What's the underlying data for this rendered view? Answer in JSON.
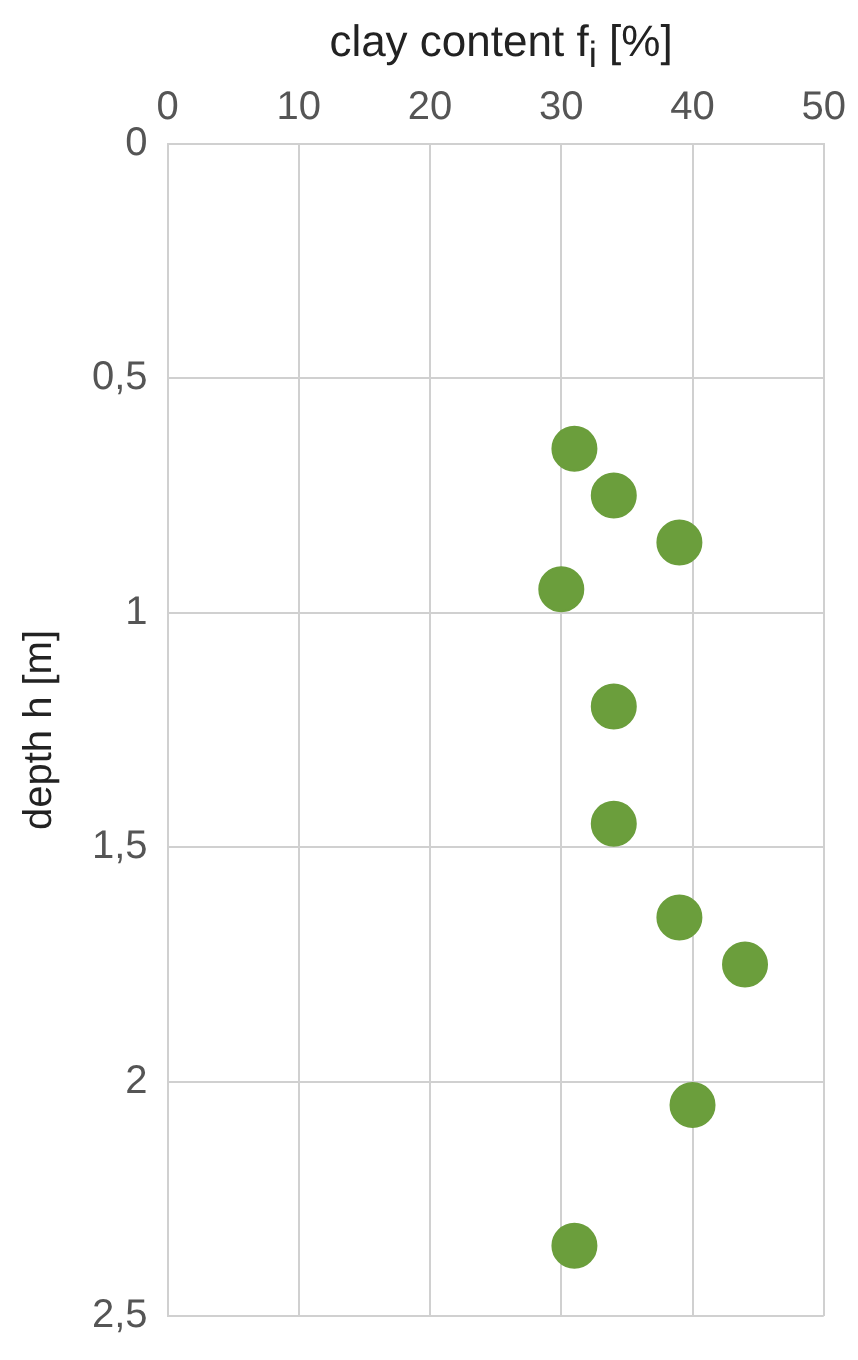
{
  "chart_data": {
    "type": "scatter",
    "xlabel": "clay content f$_{i}$ [%]",
    "ylabel": "depth h [m]",
    "xlim": [
      0,
      50
    ],
    "xticks": [
      0,
      10,
      20,
      30,
      40,
      50
    ],
    "ylim": [
      2.5,
      0
    ],
    "yticks": [
      0,
      {
        "value": 0.5,
        "label": "0,5"
      },
      1,
      {
        "value": 1.5,
        "label": "1,5"
      },
      2,
      {
        "value": 2.5,
        "label": "2,5"
      }
    ],
    "grid": true,
    "marker": "circle",
    "series": [
      {
        "color": "#6b9e3c",
        "x": [
          31,
          34,
          39,
          30,
          34,
          34,
          39,
          44,
          40,
          31
        ],
        "values": [
          0.65,
          0.75,
          0.85,
          0.95,
          1.2,
          1.45,
          1.65,
          1.75,
          2.05,
          2.35
        ]
      }
    ]
  }
}
